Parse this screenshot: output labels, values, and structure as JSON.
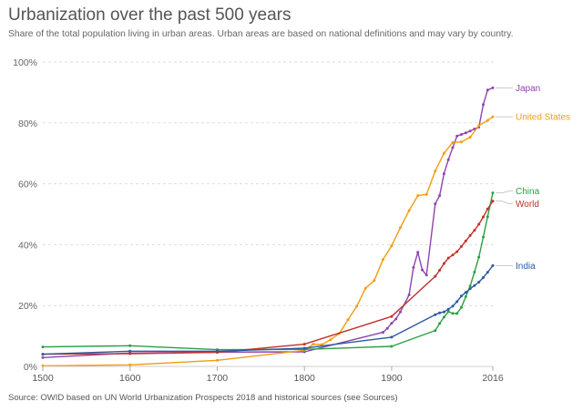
{
  "chart_data": {
    "type": "line",
    "title": "Urbanization over the past 500 years",
    "subtitle": "Share of the total population living in urban areas. Urban areas are based on national definitions and may vary by country.",
    "source": "Source: OWID based on UN World Urbanization Prospects 2018 and historical sources (see Sources)",
    "xlabel": "",
    "ylabel": "",
    "xlim": [
      1500,
      2016
    ],
    "ylim": [
      0,
      100
    ],
    "x_ticks": [
      "1500",
      "1600",
      "1700",
      "1800",
      "1900",
      "2016"
    ],
    "y_ticks": [
      "0%",
      "20%",
      "40%",
      "60%",
      "80%",
      "100%"
    ],
    "grid": true,
    "legend": "right (end-of-line labels)",
    "series": [
      {
        "name": "Japan",
        "color": "#8e44ad",
        "points": [
          [
            1500,
            2.9
          ],
          [
            1600,
            4.4
          ],
          [
            1700,
            4.7
          ],
          [
            1800,
            4.8
          ],
          [
            1890,
            11.2
          ],
          [
            1895,
            12.5
          ],
          [
            1900,
            14.2
          ],
          [
            1905,
            15.6
          ],
          [
            1910,
            17.9
          ],
          [
            1920,
            23.5
          ],
          [
            1925,
            32.5
          ],
          [
            1930,
            37.5
          ],
          [
            1935,
            31.7
          ],
          [
            1940,
            30
          ],
          [
            1950,
            53.4
          ],
          [
            1955,
            56.1
          ],
          [
            1960,
            63.3
          ],
          [
            1965,
            67.9
          ],
          [
            1970,
            71.9
          ],
          [
            1975,
            75.7
          ],
          [
            1980,
            76.2
          ],
          [
            1985,
            76.7
          ],
          [
            1990,
            77.3
          ],
          [
            1995,
            78
          ],
          [
            2000,
            78.6
          ],
          [
            2005,
            86
          ],
          [
            2010,
            90.8
          ],
          [
            2016,
            91.5
          ]
        ]
      },
      {
        "name": "United States",
        "color": "#f39c12",
        "points": [
          [
            1500,
            0.2
          ],
          [
            1600,
            0.5
          ],
          [
            1700,
            2
          ],
          [
            1800,
            5.3
          ],
          [
            1810,
            7.3
          ],
          [
            1820,
            7.2
          ],
          [
            1830,
            8.8
          ],
          [
            1840,
            10.8
          ],
          [
            1850,
            15.4
          ],
          [
            1860,
            19.8
          ],
          [
            1870,
            25.7
          ],
          [
            1880,
            28.2
          ],
          [
            1890,
            35.1
          ],
          [
            1900,
            39.6
          ],
          [
            1910,
            45.6
          ],
          [
            1920,
            51.2
          ],
          [
            1930,
            56.1
          ],
          [
            1940,
            56.5
          ],
          [
            1950,
            64.2
          ],
          [
            1960,
            70
          ],
          [
            1970,
            73.6
          ],
          [
            1980,
            73.7
          ],
          [
            1990,
            75.3
          ],
          [
            2000,
            79.1
          ],
          [
            2010,
            80.8
          ],
          [
            2016,
            82
          ]
        ]
      },
      {
        "name": "China",
        "color": "#2e9e44",
        "points": [
          [
            1500,
            6.4
          ],
          [
            1600,
            6.8
          ],
          [
            1700,
            5.5
          ],
          [
            1800,
            5.6
          ],
          [
            1900,
            6.6
          ],
          [
            1950,
            11.8
          ],
          [
            1955,
            14.1
          ],
          [
            1960,
            16.2
          ],
          [
            1965,
            18
          ],
          [
            1970,
            17.4
          ],
          [
            1975,
            17.4
          ],
          [
            1980,
            19.4
          ],
          [
            1985,
            22.9
          ],
          [
            1990,
            26.4
          ],
          [
            1995,
            31
          ],
          [
            2000,
            35.9
          ],
          [
            2005,
            42.5
          ],
          [
            2010,
            49.2
          ],
          [
            2016,
            57
          ]
        ]
      },
      {
        "name": "World",
        "color": "#c0312b",
        "points": [
          [
            1500,
            4
          ],
          [
            1600,
            4.2
          ],
          [
            1700,
            4.6
          ],
          [
            1800,
            7.3
          ],
          [
            1900,
            16.4
          ],
          [
            1950,
            29.6
          ],
          [
            1955,
            31.6
          ],
          [
            1960,
            33.8
          ],
          [
            1965,
            35.6
          ],
          [
            1970,
            36.6
          ],
          [
            1975,
            37.7
          ],
          [
            1980,
            39.4
          ],
          [
            1985,
            41.2
          ],
          [
            1990,
            43
          ],
          [
            1995,
            44.7
          ],
          [
            2000,
            46.7
          ],
          [
            2005,
            49.1
          ],
          [
            2010,
            51.7
          ],
          [
            2016,
            54.3
          ]
        ]
      },
      {
        "name": "India",
        "color": "#2d5aa0",
        "points": [
          [
            1500,
            4
          ],
          [
            1600,
            5
          ],
          [
            1700,
            5
          ],
          [
            1800,
            6
          ],
          [
            1900,
            9.6
          ],
          [
            1950,
            17
          ],
          [
            1955,
            17.6
          ],
          [
            1960,
            17.9
          ],
          [
            1965,
            18.8
          ],
          [
            1970,
            19.8
          ],
          [
            1975,
            21.3
          ],
          [
            1980,
            23.1
          ],
          [
            1985,
            24.3
          ],
          [
            1990,
            25.5
          ],
          [
            1995,
            26.6
          ],
          [
            2000,
            27.7
          ],
          [
            2005,
            29.2
          ],
          [
            2010,
            30.9
          ],
          [
            2016,
            33.1
          ]
        ]
      }
    ]
  }
}
